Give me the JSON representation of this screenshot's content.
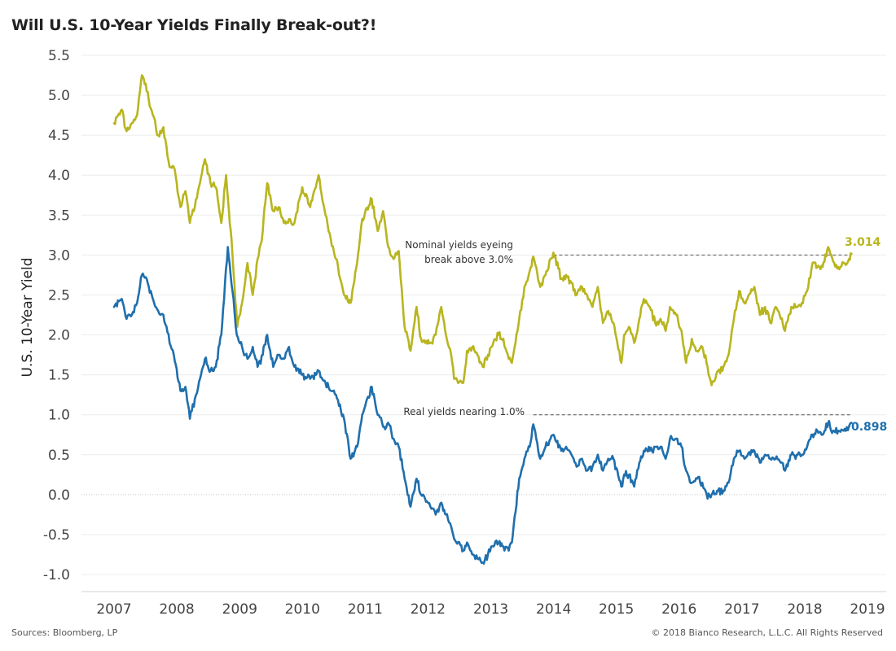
{
  "chart_data": {
    "type": "line",
    "title": "Will U.S. 10-Year Yields Finally Break-out?!",
    "ylabel": "U.S. 10-Year Yield",
    "xlabel": "",
    "ylim": [
      -1.0,
      5.5
    ],
    "xlim": [
      "2007-01-01",
      "2019-01-01"
    ],
    "yticks": [
      "5.5",
      "5.0",
      "4.5",
      "4.0",
      "3.5",
      "3.0",
      "2.5",
      "2.0",
      "1.5",
      "1.0",
      "0.5",
      "0.0",
      "-0.5",
      "-1.0"
    ],
    "xticks": [
      "2007",
      "2008",
      "2009",
      "2010",
      "2011",
      "2012",
      "2013",
      "2014",
      "2015",
      "2016",
      "2017",
      "2018",
      "2019"
    ],
    "grid": true,
    "legend": "none",
    "series": [
      {
        "color": "#b8b51f",
        "end_label": "3.014",
        "points": [
          [
            "2007-01-01",
            4.65
          ],
          [
            "2007-02-15",
            4.82
          ],
          [
            "2007-03-15",
            4.55
          ],
          [
            "2007-04-15",
            4.65
          ],
          [
            "2007-05-15",
            4.75
          ],
          [
            "2007-06-12",
            5.25
          ],
          [
            "2007-07-10",
            5.05
          ],
          [
            "2007-08-15",
            4.75
          ],
          [
            "2007-09-15",
            4.5
          ],
          [
            "2007-10-15",
            4.6
          ],
          [
            "2007-11-20",
            4.1
          ],
          [
            "2007-12-15",
            4.1
          ],
          [
            "2008-01-22",
            3.6
          ],
          [
            "2008-02-20",
            3.8
          ],
          [
            "2008-03-17",
            3.4
          ],
          [
            "2008-04-15",
            3.6
          ],
          [
            "2008-05-15",
            3.9
          ],
          [
            "2008-06-13",
            4.2
          ],
          [
            "2008-07-15",
            3.9
          ],
          [
            "2008-08-15",
            3.85
          ],
          [
            "2008-09-16",
            3.4
          ],
          [
            "2008-10-14",
            4.0
          ],
          [
            "2008-11-20",
            3.0
          ],
          [
            "2008-12-18",
            2.1
          ],
          [
            "2009-01-15",
            2.4
          ],
          [
            "2009-02-15",
            2.9
          ],
          [
            "2009-03-18",
            2.5
          ],
          [
            "2009-04-15",
            2.95
          ],
          [
            "2009-05-15",
            3.3
          ],
          [
            "2009-06-10",
            3.9
          ],
          [
            "2009-07-15",
            3.55
          ],
          [
            "2009-08-15",
            3.6
          ],
          [
            "2009-09-15",
            3.4
          ],
          [
            "2009-10-15",
            3.45
          ],
          [
            "2009-11-15",
            3.4
          ],
          [
            "2009-12-31",
            3.85
          ],
          [
            "2010-02-15",
            3.6
          ],
          [
            "2010-04-05",
            4.0
          ],
          [
            "2010-05-15",
            3.5
          ],
          [
            "2010-06-15",
            3.2
          ],
          [
            "2010-07-15",
            2.95
          ],
          [
            "2010-08-31",
            2.5
          ],
          [
            "2010-10-08",
            2.4
          ],
          [
            "2010-11-15",
            2.9
          ],
          [
            "2010-12-15",
            3.45
          ],
          [
            "2011-02-08",
            3.7
          ],
          [
            "2011-03-15",
            3.3
          ],
          [
            "2011-04-15",
            3.55
          ],
          [
            "2011-05-15",
            3.1
          ],
          [
            "2011-06-15",
            2.95
          ],
          [
            "2011-07-15",
            3.05
          ],
          [
            "2011-08-18",
            2.1
          ],
          [
            "2011-09-22",
            1.8
          ],
          [
            "2011-10-27",
            2.35
          ],
          [
            "2011-11-22",
            1.95
          ],
          [
            "2011-12-15",
            1.9
          ],
          [
            "2012-01-15",
            1.9
          ],
          [
            "2012-02-15",
            2.0
          ],
          [
            "2012-03-19",
            2.35
          ],
          [
            "2012-04-15",
            2.0
          ],
          [
            "2012-05-15",
            1.75
          ],
          [
            "2012-06-01",
            1.45
          ],
          [
            "2012-07-25",
            1.4
          ],
          [
            "2012-08-15",
            1.8
          ],
          [
            "2012-09-15",
            1.85
          ],
          [
            "2012-10-15",
            1.75
          ],
          [
            "2012-11-15",
            1.6
          ],
          [
            "2012-12-15",
            1.75
          ],
          [
            "2013-01-15",
            1.9
          ],
          [
            "2013-02-15",
            2.0
          ],
          [
            "2013-03-15",
            1.95
          ],
          [
            "2013-04-15",
            1.7
          ],
          [
            "2013-05-03",
            1.65
          ],
          [
            "2013-06-15",
            2.2
          ],
          [
            "2013-07-15",
            2.6
          ],
          [
            "2013-08-15",
            2.8
          ],
          [
            "2013-09-05",
            2.98
          ],
          [
            "2013-10-15",
            2.6
          ],
          [
            "2013-11-15",
            2.75
          ],
          [
            "2013-12-31",
            3.03
          ],
          [
            "2014-02-15",
            2.7
          ],
          [
            "2014-03-15",
            2.75
          ],
          [
            "2014-04-15",
            2.65
          ],
          [
            "2014-05-15",
            2.5
          ],
          [
            "2014-06-15",
            2.6
          ],
          [
            "2014-07-15",
            2.5
          ],
          [
            "2014-08-15",
            2.35
          ],
          [
            "2014-09-15",
            2.6
          ],
          [
            "2014-10-15",
            2.15
          ],
          [
            "2014-11-15",
            2.3
          ],
          [
            "2014-12-15",
            2.15
          ],
          [
            "2015-01-30",
            1.65
          ],
          [
            "2015-02-15",
            2.0
          ],
          [
            "2015-03-15",
            2.1
          ],
          [
            "2015-04-15",
            1.9
          ],
          [
            "2015-05-15",
            2.2
          ],
          [
            "2015-06-10",
            2.45
          ],
          [
            "2015-07-15",
            2.35
          ],
          [
            "2015-08-15",
            2.15
          ],
          [
            "2015-09-15",
            2.2
          ],
          [
            "2015-10-15",
            2.05
          ],
          [
            "2015-11-09",
            2.35
          ],
          [
            "2015-12-15",
            2.25
          ],
          [
            "2016-01-15",
            2.05
          ],
          [
            "2016-02-11",
            1.65
          ],
          [
            "2016-03-15",
            1.95
          ],
          [
            "2016-04-15",
            1.8
          ],
          [
            "2016-05-15",
            1.85
          ],
          [
            "2016-06-15",
            1.6
          ],
          [
            "2016-07-08",
            1.37
          ],
          [
            "2016-08-15",
            1.55
          ],
          [
            "2016-09-15",
            1.6
          ],
          [
            "2016-10-15",
            1.75
          ],
          [
            "2016-11-15",
            2.2
          ],
          [
            "2016-12-15",
            2.55
          ],
          [
            "2017-01-15",
            2.4
          ],
          [
            "2017-03-14",
            2.6
          ],
          [
            "2017-04-15",
            2.25
          ],
          [
            "2017-05-15",
            2.35
          ],
          [
            "2017-06-15",
            2.15
          ],
          [
            "2017-07-15",
            2.35
          ],
          [
            "2017-08-15",
            2.2
          ],
          [
            "2017-09-08",
            2.05
          ],
          [
            "2017-10-15",
            2.35
          ],
          [
            "2017-11-15",
            2.35
          ],
          [
            "2017-12-15",
            2.4
          ],
          [
            "2018-01-15",
            2.55
          ],
          [
            "2018-02-15",
            2.9
          ],
          [
            "2018-03-15",
            2.85
          ],
          [
            "2018-04-15",
            2.85
          ],
          [
            "2018-05-17",
            3.1
          ],
          [
            "2018-06-15",
            2.92
          ],
          [
            "2018-07-15",
            2.85
          ],
          [
            "2018-08-15",
            2.9
          ],
          [
            "2018-09-15",
            2.95
          ],
          [
            "2018-09-30",
            3.014
          ]
        ]
      },
      {
        "color": "#1f6fad",
        "end_label": "0.898",
        "points": [
          [
            "2007-01-01",
            2.35
          ],
          [
            "2007-02-15",
            2.45
          ],
          [
            "2007-03-15",
            2.2
          ],
          [
            "2007-04-15",
            2.25
          ],
          [
            "2007-05-15",
            2.4
          ],
          [
            "2007-06-12",
            2.75
          ],
          [
            "2007-07-10",
            2.7
          ],
          [
            "2007-08-15",
            2.45
          ],
          [
            "2007-09-15",
            2.3
          ],
          [
            "2007-10-15",
            2.25
          ],
          [
            "2007-11-20",
            1.9
          ],
          [
            "2007-12-15",
            1.75
          ],
          [
            "2008-01-22",
            1.3
          ],
          [
            "2008-02-20",
            1.35
          ],
          [
            "2008-03-17",
            0.95
          ],
          [
            "2008-04-15",
            1.2
          ],
          [
            "2008-05-15",
            1.45
          ],
          [
            "2008-06-13",
            1.7
          ],
          [
            "2008-07-15",
            1.55
          ],
          [
            "2008-08-15",
            1.6
          ],
          [
            "2008-09-16",
            2.0
          ],
          [
            "2008-10-24",
            3.1
          ],
          [
            "2008-11-20",
            2.55
          ],
          [
            "2008-12-15",
            2.0
          ],
          [
            "2009-01-15",
            1.85
          ],
          [
            "2009-02-15",
            1.7
          ],
          [
            "2009-03-18",
            1.85
          ],
          [
            "2009-04-15",
            1.6
          ],
          [
            "2009-05-15",
            1.75
          ],
          [
            "2009-06-10",
            2.0
          ],
          [
            "2009-07-15",
            1.6
          ],
          [
            "2009-08-15",
            1.75
          ],
          [
            "2009-09-15",
            1.7
          ],
          [
            "2009-10-15",
            1.85
          ],
          [
            "2009-11-15",
            1.6
          ],
          [
            "2009-12-31",
            1.5
          ],
          [
            "2010-02-15",
            1.45
          ],
          [
            "2010-04-05",
            1.55
          ],
          [
            "2010-05-15",
            1.4
          ],
          [
            "2010-06-15",
            1.3
          ],
          [
            "2010-07-15",
            1.25
          ],
          [
            "2010-08-31",
            0.95
          ],
          [
            "2010-10-08",
            0.45
          ],
          [
            "2010-11-15",
            0.6
          ],
          [
            "2010-12-15",
            1.0
          ],
          [
            "2011-02-08",
            1.35
          ],
          [
            "2011-03-15",
            1.0
          ],
          [
            "2011-04-15",
            0.85
          ],
          [
            "2011-05-15",
            0.9
          ],
          [
            "2011-06-15",
            0.7
          ],
          [
            "2011-07-15",
            0.6
          ],
          [
            "2011-08-18",
            0.2
          ],
          [
            "2011-09-22",
            -0.15
          ],
          [
            "2011-10-27",
            0.2
          ],
          [
            "2011-11-22",
            0.0
          ],
          [
            "2011-12-15",
            -0.05
          ],
          [
            "2012-01-15",
            -0.15
          ],
          [
            "2012-02-15",
            -0.25
          ],
          [
            "2012-03-19",
            -0.1
          ],
          [
            "2012-04-15",
            -0.25
          ],
          [
            "2012-05-15",
            -0.4
          ],
          [
            "2012-06-01",
            -0.55
          ],
          [
            "2012-07-25",
            -0.7
          ],
          [
            "2012-08-15",
            -0.6
          ],
          [
            "2012-09-15",
            -0.75
          ],
          [
            "2012-10-15",
            -0.8
          ],
          [
            "2012-11-15",
            -0.85
          ],
          [
            "2012-12-15",
            -0.75
          ],
          [
            "2013-01-15",
            -0.65
          ],
          [
            "2013-02-15",
            -0.6
          ],
          [
            "2013-03-15",
            -0.65
          ],
          [
            "2013-04-15",
            -0.7
          ],
          [
            "2013-05-03",
            -0.6
          ],
          [
            "2013-06-15",
            0.2
          ],
          [
            "2013-07-15",
            0.45
          ],
          [
            "2013-08-15",
            0.6
          ],
          [
            "2013-09-05",
            0.88
          ],
          [
            "2013-10-15",
            0.45
          ],
          [
            "2013-11-15",
            0.6
          ],
          [
            "2013-12-31",
            0.75
          ],
          [
            "2014-02-15",
            0.55
          ],
          [
            "2014-03-15",
            0.6
          ],
          [
            "2014-04-15",
            0.5
          ],
          [
            "2014-05-15",
            0.35
          ],
          [
            "2014-06-15",
            0.45
          ],
          [
            "2014-07-15",
            0.3
          ],
          [
            "2014-08-15",
            0.35
          ],
          [
            "2014-09-15",
            0.5
          ],
          [
            "2014-10-15",
            0.3
          ],
          [
            "2014-11-15",
            0.45
          ],
          [
            "2014-12-15",
            0.45
          ],
          [
            "2015-01-30",
            0.1
          ],
          [
            "2015-02-15",
            0.25
          ],
          [
            "2015-03-15",
            0.25
          ],
          [
            "2015-04-15",
            0.1
          ],
          [
            "2015-05-15",
            0.4
          ],
          [
            "2015-06-10",
            0.55
          ],
          [
            "2015-07-15",
            0.55
          ],
          [
            "2015-08-15",
            0.6
          ],
          [
            "2015-09-15",
            0.6
          ],
          [
            "2015-10-15",
            0.45
          ],
          [
            "2015-11-09",
            0.7
          ],
          [
            "2015-12-15",
            0.7
          ],
          [
            "2016-01-15",
            0.6
          ],
          [
            "2016-02-11",
            0.3
          ],
          [
            "2016-03-15",
            0.15
          ],
          [
            "2016-04-15",
            0.2
          ],
          [
            "2016-05-15",
            0.15
          ],
          [
            "2016-06-15",
            -0.05
          ],
          [
            "2016-07-08",
            0.0
          ],
          [
            "2016-08-15",
            0.05
          ],
          [
            "2016-09-15",
            0.05
          ],
          [
            "2016-10-15",
            0.15
          ],
          [
            "2016-11-15",
            0.45
          ],
          [
            "2016-12-15",
            0.55
          ],
          [
            "2017-01-15",
            0.45
          ],
          [
            "2017-03-14",
            0.55
          ],
          [
            "2017-04-15",
            0.4
          ],
          [
            "2017-05-15",
            0.5
          ],
          [
            "2017-06-15",
            0.45
          ],
          [
            "2017-07-15",
            0.45
          ],
          [
            "2017-08-15",
            0.4
          ],
          [
            "2017-09-08",
            0.3
          ],
          [
            "2017-10-15",
            0.5
          ],
          [
            "2017-11-15",
            0.5
          ],
          [
            "2017-12-15",
            0.5
          ],
          [
            "2018-01-15",
            0.6
          ],
          [
            "2018-02-15",
            0.75
          ],
          [
            "2018-03-15",
            0.8
          ],
          [
            "2018-04-15",
            0.75
          ],
          [
            "2018-05-17",
            0.9
          ],
          [
            "2018-06-15",
            0.8
          ],
          [
            "2018-07-15",
            0.8
          ],
          [
            "2018-08-15",
            0.8
          ],
          [
            "2018-09-15",
            0.85
          ],
          [
            "2018-09-30",
            0.898
          ]
        ]
      }
    ],
    "reference_lines": [
      {
        "y": 3.0,
        "x_start": "2013-12-31",
        "x_end": "2018-09-30"
      },
      {
        "y": 1.0,
        "x_start": "2013-09-05",
        "x_end": "2018-09-30"
      }
    ],
    "annotations": [
      {
        "line1": "Nominal yields eyeing",
        "line2": "break above 3.0%"
      },
      {
        "line1": "Real yields nearing 1.0%"
      }
    ]
  },
  "footer": {
    "source": "Sources: Bloomberg, LP",
    "copyright": "© 2018 Bianco Research, L.L.C. All Rights Reserved"
  }
}
